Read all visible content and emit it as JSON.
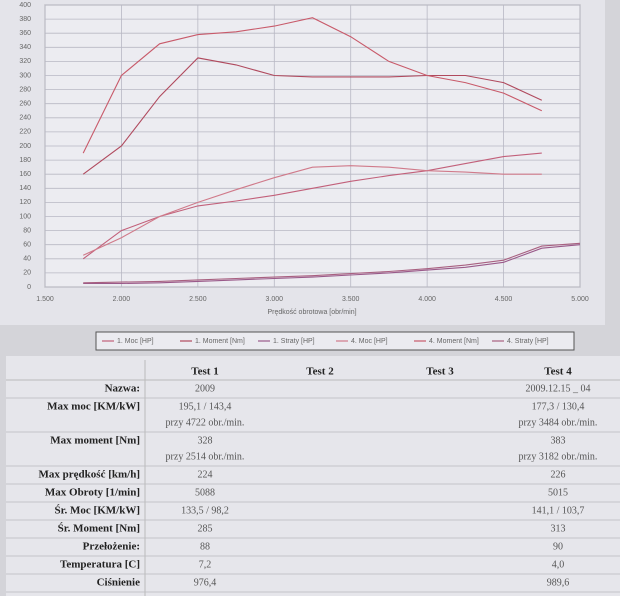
{
  "chart_data": {
    "type": "line",
    "x_label": "Prędkość obrotowa [obr/min]",
    "x": [
      1750,
      2000,
      2250,
      2500,
      2750,
      3000,
      3250,
      3500,
      3750,
      4000,
      4250,
      4500,
      4750,
      5000
    ],
    "series": [
      {
        "name": "1. Moc [HP]",
        "color": "#c2607a",
        "values": [
          40,
          80,
          100,
          115,
          122,
          130,
          140,
          150,
          158,
          165,
          175,
          185,
          190,
          null
        ]
      },
      {
        "name": "1. Moment [Nm]",
        "color": "#b04a5e",
        "values": [
          160,
          200,
          270,
          325,
          315,
          300,
          298,
          298,
          298,
          300,
          300,
          290,
          265,
          null
        ]
      },
      {
        "name": "1. Straty [HP]",
        "color": "#9a5a8a",
        "values": [
          5,
          5,
          6,
          8,
          10,
          12,
          14,
          17,
          20,
          24,
          28,
          35,
          55,
          60
        ]
      },
      {
        "name": "4. Moc [HP]",
        "color": "#d07a8a",
        "values": [
          45,
          70,
          100,
          120,
          138,
          155,
          170,
          172,
          170,
          165,
          163,
          160,
          160,
          null
        ]
      },
      {
        "name": "4. Moment [Nm]",
        "color": "#c85a6a",
        "values": [
          190,
          300,
          345,
          358,
          362,
          370,
          382,
          355,
          320,
          300,
          290,
          275,
          250,
          null
        ]
      },
      {
        "name": "4. Straty [HP]",
        "color": "#a86080",
        "values": [
          6,
          7,
          8,
          10,
          12,
          14,
          16,
          19,
          22,
          26,
          31,
          38,
          58,
          62
        ]
      }
    ],
    "xlim": [
      1500,
      5000
    ],
    "xticks": [
      {
        "value": 1500,
        "label": "1.500"
      },
      {
        "value": 2000,
        "label": "2.000"
      },
      {
        "value": 2500,
        "label": "2.500"
      },
      {
        "value": 3000,
        "label": "3.000"
      },
      {
        "value": 3500,
        "label": "3.500"
      },
      {
        "value": 4000,
        "label": "4.000"
      },
      {
        "value": 4500,
        "label": "4.500"
      },
      {
        "value": 5000,
        "label": "5.000"
      }
    ],
    "ylim": [
      0,
      400
    ],
    "yticks": [
      0,
      20,
      40,
      60,
      80,
      100,
      120,
      140,
      160,
      180,
      200,
      220,
      240,
      260,
      280,
      300,
      320,
      340,
      360,
      380,
      400
    ],
    "grid": true
  },
  "table": {
    "headers": [
      "Test 1",
      "Test 2",
      "Test 3",
      "Test 4"
    ],
    "rows": [
      {
        "label": "Nazwa:",
        "test1": [
          "2009"
        ],
        "test4": [
          "2009.12.15 _ 04"
        ]
      },
      {
        "label": "Max moc [KM/kW]",
        "test1": [
          "195,1 / 143,4",
          "przy 4722 obr./min."
        ],
        "test4": [
          "177,3 / 130,4",
          "przy 3484 obr./min."
        ]
      },
      {
        "label": "Max moment [Nm]",
        "test1": [
          "328",
          "przy 2514 obr./min."
        ],
        "test4": [
          "383",
          "przy 3182 obr./min."
        ]
      },
      {
        "label": "Max prędkość [km/h]",
        "test1": [
          "224"
        ],
        "test4": [
          "226"
        ]
      },
      {
        "label": "Max Obroty [1/min]",
        "test1": [
          "5088"
        ],
        "test4": [
          "5015"
        ]
      },
      {
        "label": "Śr. Moc [KM/kW]",
        "test1": [
          "133,5 / 98,2"
        ],
        "test4": [
          "141,1 / 103,7"
        ]
      },
      {
        "label": "Śr. Moment [Nm]",
        "test1": [
          "285"
        ],
        "test4": [
          "313"
        ]
      },
      {
        "label": "Przełożenie:",
        "test1": [
          "88"
        ],
        "test4": [
          "90"
        ]
      },
      {
        "label": "Temperatura [C]",
        "test1": [
          "7,2"
        ],
        "test4": [
          "4,0"
        ]
      },
      {
        "label": "Ciśnienie",
        "test1": [
          "976,4"
        ],
        "test4": [
          "989,6"
        ]
      }
    ]
  }
}
